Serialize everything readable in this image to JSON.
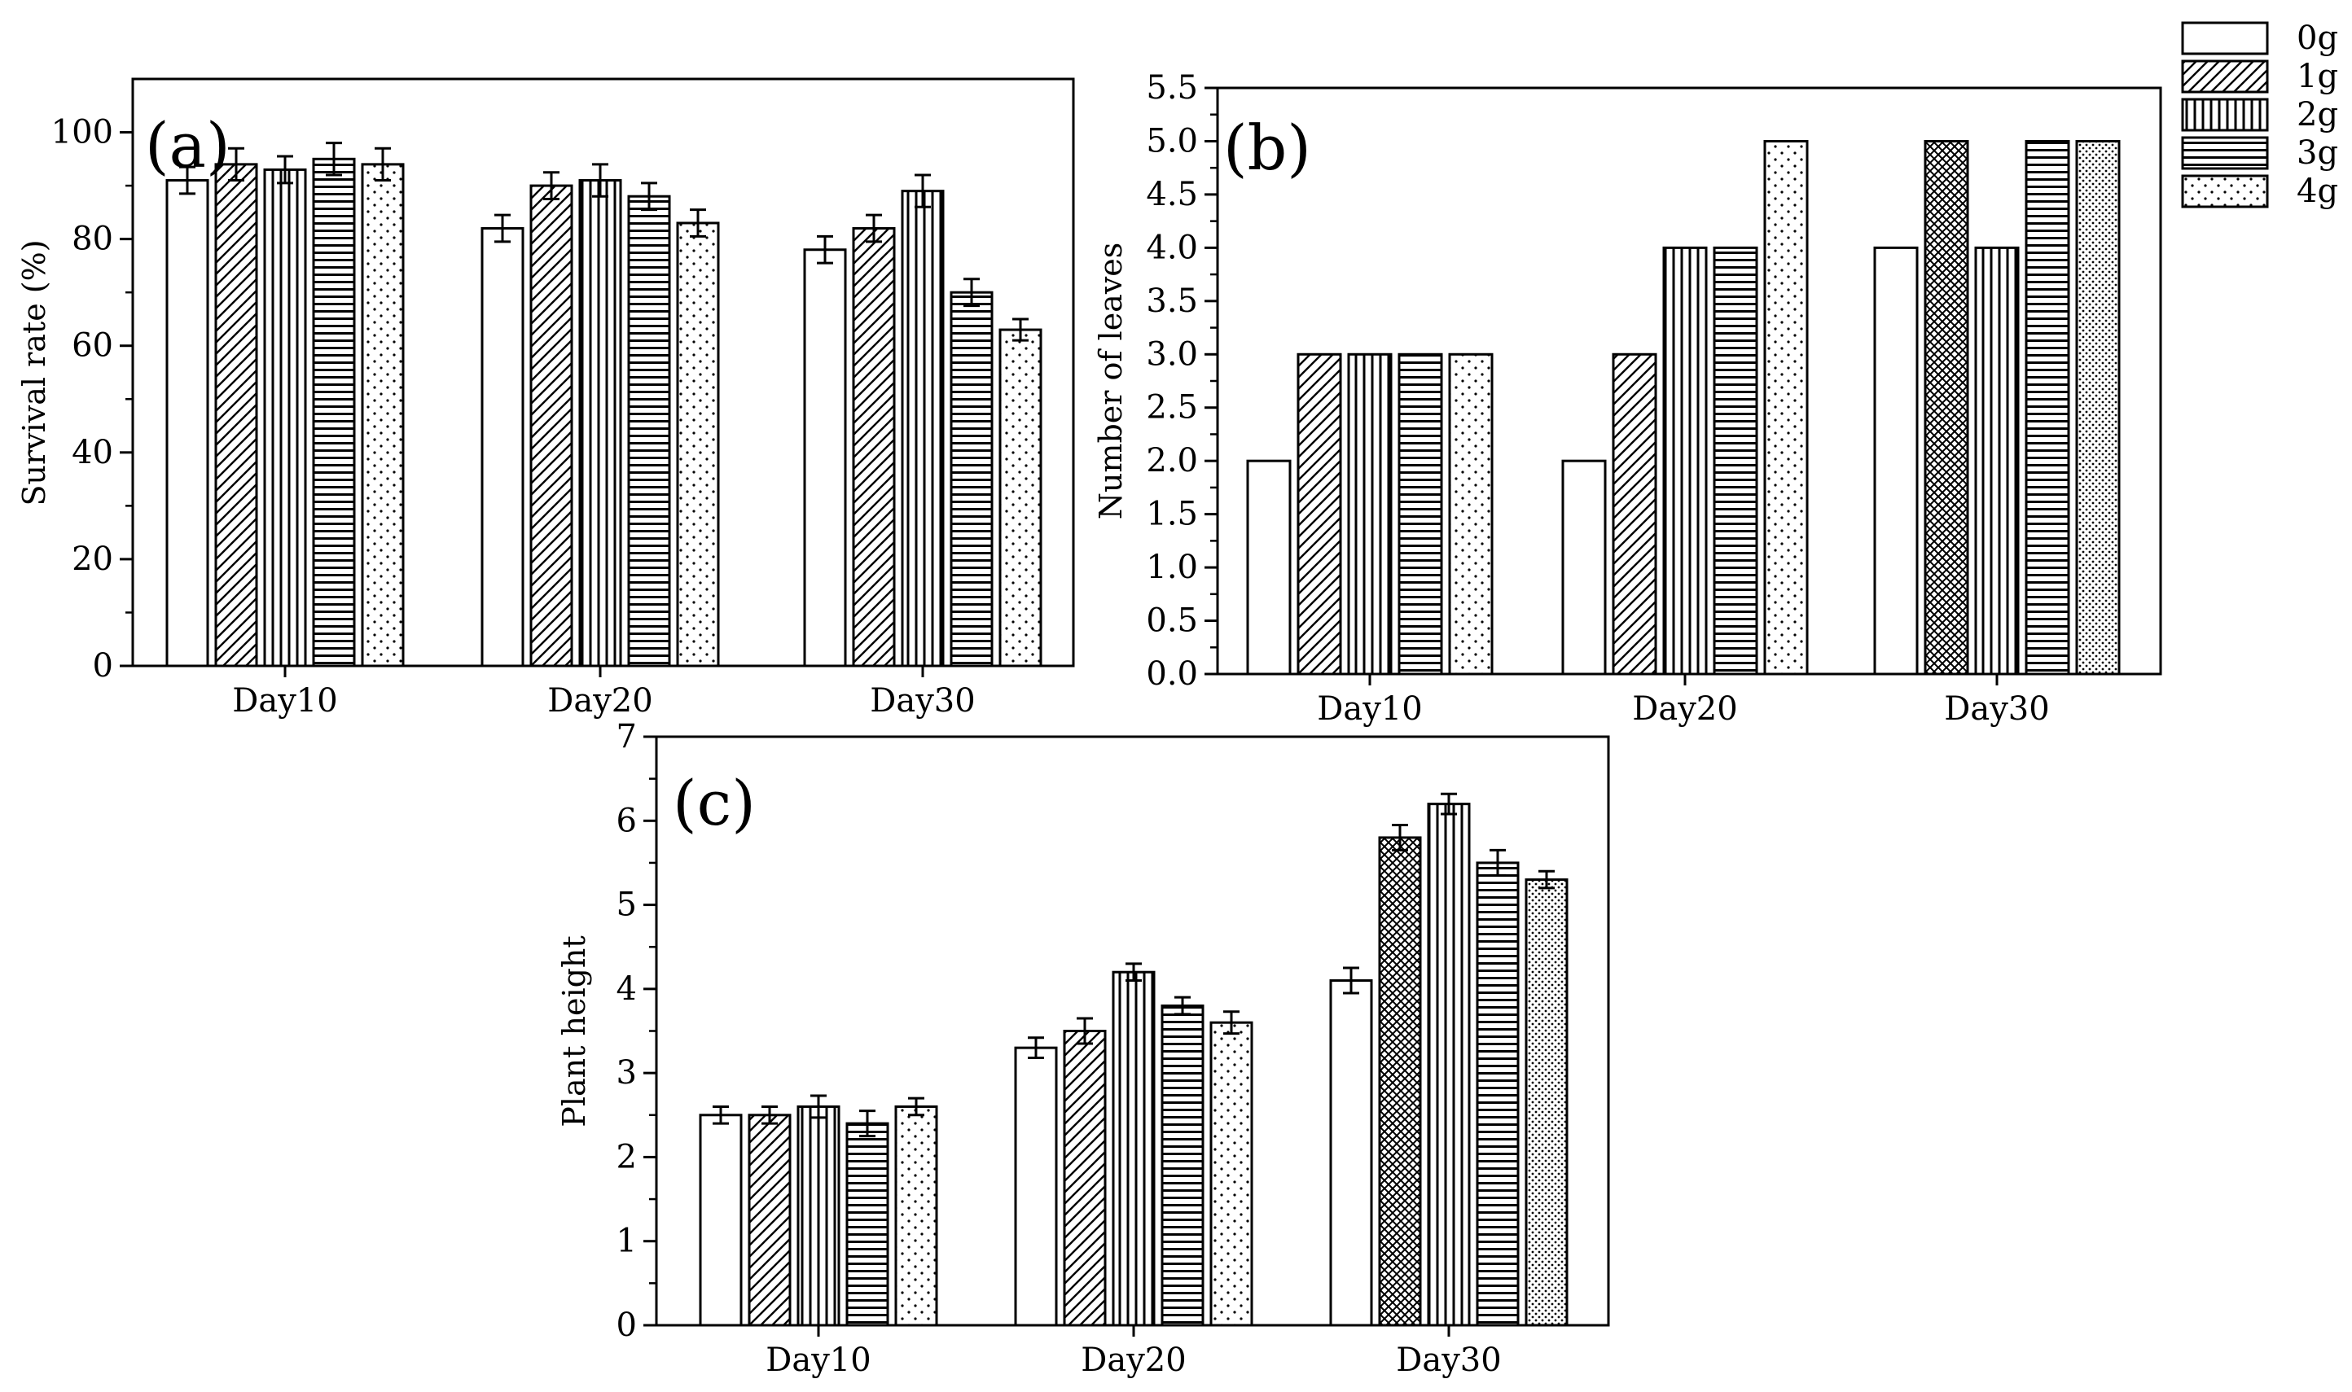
{
  "legend": {
    "entries": [
      {
        "label": "0g",
        "pattern": "blank"
      },
      {
        "label": "1g",
        "pattern": "diagonal"
      },
      {
        "label": "2g",
        "pattern": "vertical"
      },
      {
        "label": "3g",
        "pattern": "horizontal"
      },
      {
        "label": "4g",
        "pattern": "dots"
      }
    ]
  },
  "chart_data": [
    {
      "panel": "(a)",
      "type": "bar",
      "ylabel": "Survival rate (%)",
      "xlabel": "",
      "ylim": [
        0,
        110
      ],
      "yticks": [
        0,
        20,
        40,
        60,
        80,
        100
      ],
      "categories": [
        "Day10",
        "Day20",
        "Day30"
      ],
      "series": [
        {
          "name": "0g",
          "values": [
            91,
            82,
            78
          ],
          "errors": [
            2.5,
            2.5,
            2.5
          ]
        },
        {
          "name": "1g",
          "values": [
            94,
            90,
            82
          ],
          "errors": [
            3,
            2.5,
            2.5
          ]
        },
        {
          "name": "2g",
          "values": [
            93,
            91,
            89
          ],
          "errors": [
            2.5,
            3,
            3
          ]
        },
        {
          "name": "3g",
          "values": [
            95,
            88,
            70
          ],
          "errors": [
            3,
            2.5,
            2.5
          ]
        },
        {
          "name": "4g",
          "values": [
            94,
            83,
            63
          ],
          "errors": [
            3,
            2.5,
            2
          ]
        }
      ]
    },
    {
      "panel": "(b)",
      "type": "bar",
      "ylabel": "Number of leaves",
      "xlabel": "",
      "ylim": [
        0,
        5.5
      ],
      "yticks": [
        0.0,
        0.5,
        1.0,
        1.5,
        2.0,
        2.5,
        3.0,
        3.5,
        4.0,
        4.5,
        5.0,
        5.5
      ],
      "categories": [
        "Day10",
        "Day20",
        "Day30"
      ],
      "series": [
        {
          "name": "0g",
          "values": [
            2,
            2,
            4
          ]
        },
        {
          "name": "1g",
          "values": [
            3,
            3,
            5
          ]
        },
        {
          "name": "2g",
          "values": [
            3,
            4,
            4
          ]
        },
        {
          "name": "3g",
          "values": [
            3,
            4,
            5
          ]
        },
        {
          "name": "4g",
          "values": [
            3,
            5,
            5
          ]
        }
      ]
    },
    {
      "panel": "(c)",
      "type": "bar",
      "ylabel": "Plant height",
      "xlabel": "",
      "ylim": [
        0,
        7
      ],
      "yticks": [
        0,
        1,
        2,
        3,
        4,
        5,
        6,
        7
      ],
      "categories": [
        "Day10",
        "Day20",
        "Day30"
      ],
      "series": [
        {
          "name": "0g",
          "values": [
            2.5,
            3.3,
            4.1
          ],
          "errors": [
            0.1,
            0.12,
            0.15
          ]
        },
        {
          "name": "1g",
          "values": [
            2.5,
            3.5,
            5.8
          ],
          "errors": [
            0.1,
            0.15,
            0.15
          ]
        },
        {
          "name": "2g",
          "values": [
            2.6,
            4.2,
            6.2
          ],
          "errors": [
            0.13,
            0.1,
            0.12
          ]
        },
        {
          "name": "3g",
          "values": [
            2.4,
            3.8,
            5.5
          ],
          "errors": [
            0.15,
            0.1,
            0.15
          ]
        },
        {
          "name": "4g",
          "values": [
            2.6,
            3.6,
            5.3
          ],
          "errors": [
            0.1,
            0.13,
            0.1
          ]
        }
      ]
    }
  ]
}
